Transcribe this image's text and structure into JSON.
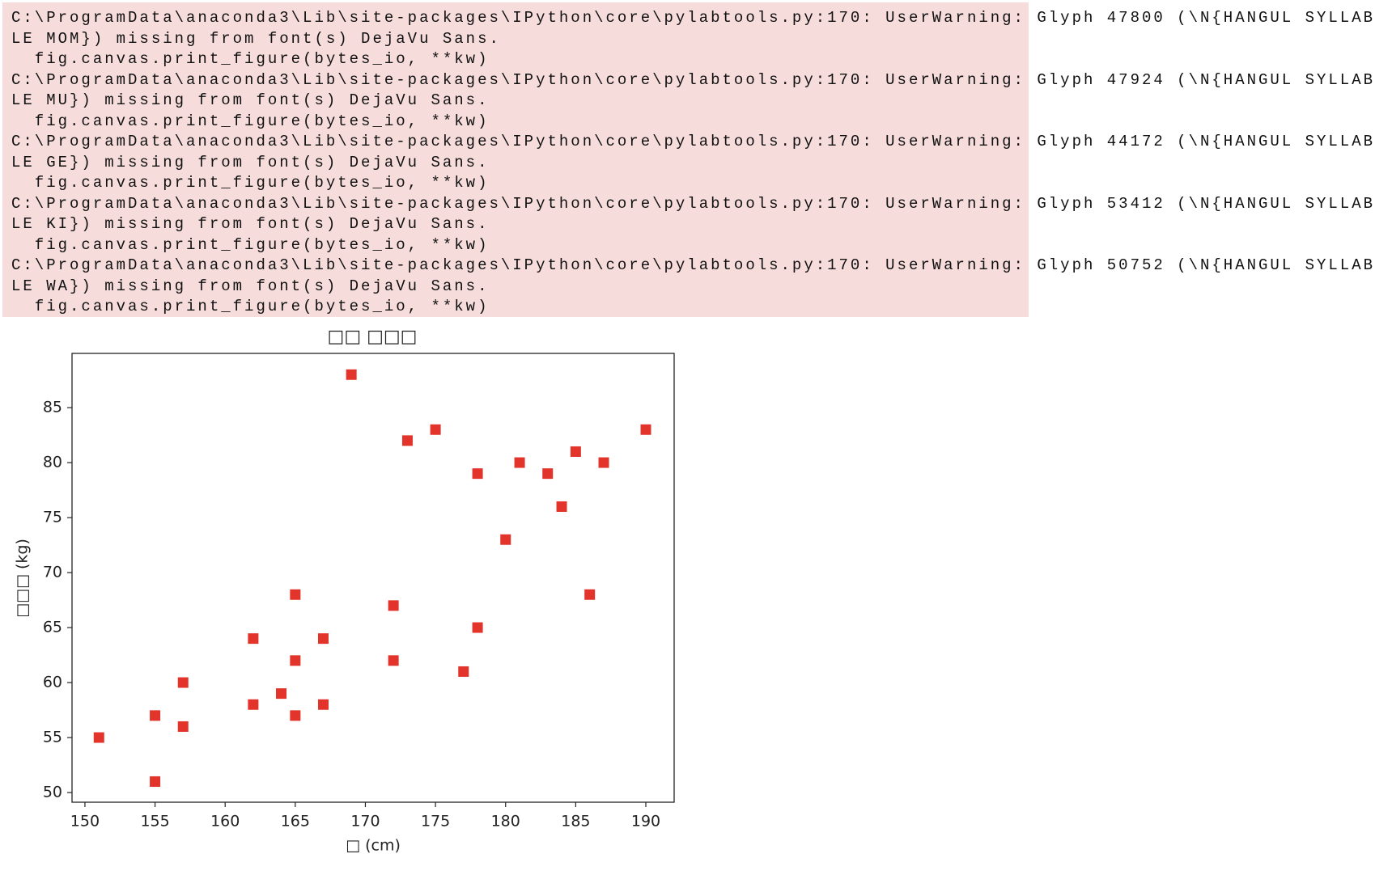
{
  "warnings": {
    "lines": [
      "C:\\ProgramData\\anaconda3\\Lib\\site-packages\\IPython\\core\\pylabtools.py:170: UserWarning: Glyph 47800 (\\N{HANGUL SYLLAB",
      "LE MOM}) missing from font(s) DejaVu Sans.",
      "  fig.canvas.print_figure(bytes_io, **kw)",
      "C:\\ProgramData\\anaconda3\\Lib\\site-packages\\IPython\\core\\pylabtools.py:170: UserWarning: Glyph 47924 (\\N{HANGUL SYLLAB",
      "LE MU}) missing from font(s) DejaVu Sans.",
      "  fig.canvas.print_figure(bytes_io, **kw)",
      "C:\\ProgramData\\anaconda3\\Lib\\site-packages\\IPython\\core\\pylabtools.py:170: UserWarning: Glyph 44172 (\\N{HANGUL SYLLAB",
      "LE GE}) missing from font(s) DejaVu Sans.",
      "  fig.canvas.print_figure(bytes_io, **kw)",
      "C:\\ProgramData\\anaconda3\\Lib\\site-packages\\IPython\\core\\pylabtools.py:170: UserWarning: Glyph 53412 (\\N{HANGUL SYLLAB",
      "LE KI}) missing from font(s) DejaVu Sans.",
      "  fig.canvas.print_figure(bytes_io, **kw)",
      "C:\\ProgramData\\anaconda3\\Lib\\site-packages\\IPython\\core\\pylabtools.py:170: UserWarning: Glyph 50752 (\\N{HANGUL SYLLAB",
      "LE WA}) missing from font(s) DejaVu Sans.",
      "  fig.canvas.print_figure(bytes_io, **kw)"
    ]
  },
  "chart_data": {
    "type": "scatter",
    "title": "□□ □□□",
    "x_label": "□ (cm)",
    "y_label": "□□□ (kg)",
    "series": [
      {
        "color": "#e3342b",
        "x": [
          151,
          155,
          155,
          157,
          157,
          162,
          162,
          164,
          165,
          165,
          165,
          167,
          167,
          169,
          172,
          172,
          173,
          175,
          177,
          178,
          178,
          180,
          181,
          183,
          184,
          185,
          186,
          187,
          190
        ],
        "values": [
          55,
          51,
          57,
          60,
          56,
          64,
          58,
          59,
          68,
          62,
          57,
          64,
          58,
          88,
          67,
          62,
          82,
          83,
          61,
          79,
          65,
          73,
          80,
          79,
          76,
          81,
          68,
          80,
          83
        ]
      }
    ],
    "xlim": [
      149.08,
      192.02
    ],
    "ylim": [
      49.12,
      89.93
    ],
    "xticks": [
      150,
      155,
      160,
      165,
      170,
      175,
      180,
      185,
      190
    ],
    "yticks": [
      50,
      55,
      60,
      65,
      70,
      75,
      80,
      85
    ]
  }
}
